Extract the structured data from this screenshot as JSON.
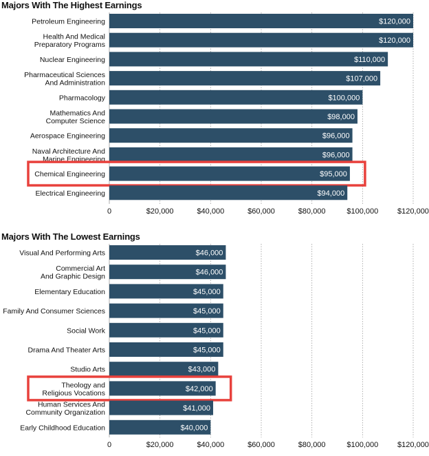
{
  "chart_data": [
    {
      "type": "bar",
      "orientation": "horizontal",
      "title": "Majors With The Highest Earnings",
      "categories": [
        "Petroleum Engineering",
        "Health And Medical\nPreparatory Programs",
        "Nuclear Engineering",
        "Pharmaceutical Sciences\nAnd Administration",
        "Pharmacology",
        "Mathematics And\nComputer Science",
        "Aerospace Engineering",
        "Naval Architecture And\nMarine Engineering",
        "Chemical Engineering",
        "Electrical Engineering"
      ],
      "values": [
        120000,
        120000,
        110000,
        107000,
        100000,
        98000,
        96000,
        96000,
        95000,
        94000
      ],
      "value_labels": [
        "$120,000",
        "$120,000",
        "$110,000",
        "$107,000",
        "$100,000",
        "$98,000",
        "$96,000",
        "$96,000",
        "$95,000",
        "$94,000"
      ],
      "xlim": [
        0,
        120000
      ],
      "x_ticks": [
        0,
        20000,
        40000,
        60000,
        80000,
        100000,
        120000
      ],
      "x_tick_labels": [
        "0",
        "$20,000",
        "$40,000",
        "$60,000",
        "$80,000",
        "$100,000",
        "$120,000"
      ],
      "grid": "vertical dotted",
      "highlighted": [
        "Chemical Engineering"
      ],
      "bar_color": "#2d4f68",
      "highlight_color": "#e8413c"
    },
    {
      "type": "bar",
      "orientation": "horizontal",
      "title": "Majors With The Lowest Earnings",
      "categories": [
        "Visual And Performing Arts",
        "Commercial Art\nAnd Graphic Design",
        "Elementary Education",
        "Family And Consumer Sciences",
        "Social Work",
        "Drama And Theater Arts",
        "Studio Arts",
        "Theology and\nReligious Vocations",
        "Human Services And\nCommunity Organization",
        "Early Childhood Education"
      ],
      "values": [
        46000,
        46000,
        45000,
        45000,
        45000,
        45000,
        43000,
        42000,
        41000,
        40000
      ],
      "value_labels": [
        "$46,000",
        "$46,000",
        "$45,000",
        "$45,000",
        "$45,000",
        "$45,000",
        "$43,000",
        "$42,000",
        "$41,000",
        "$40,000"
      ],
      "xlim": [
        0,
        120000
      ],
      "x_ticks": [
        0,
        20000,
        40000,
        60000,
        80000,
        100000,
        120000
      ],
      "x_tick_labels": [
        "0",
        "$20,000",
        "$40,000",
        "$60,000",
        "$80,000",
        "$100,000",
        "$120,000"
      ],
      "grid": "vertical dotted",
      "highlighted": [
        "Theology and\nReligious Vocations"
      ],
      "bar_color": "#2d4f68",
      "highlight_color": "#e8413c"
    }
  ]
}
